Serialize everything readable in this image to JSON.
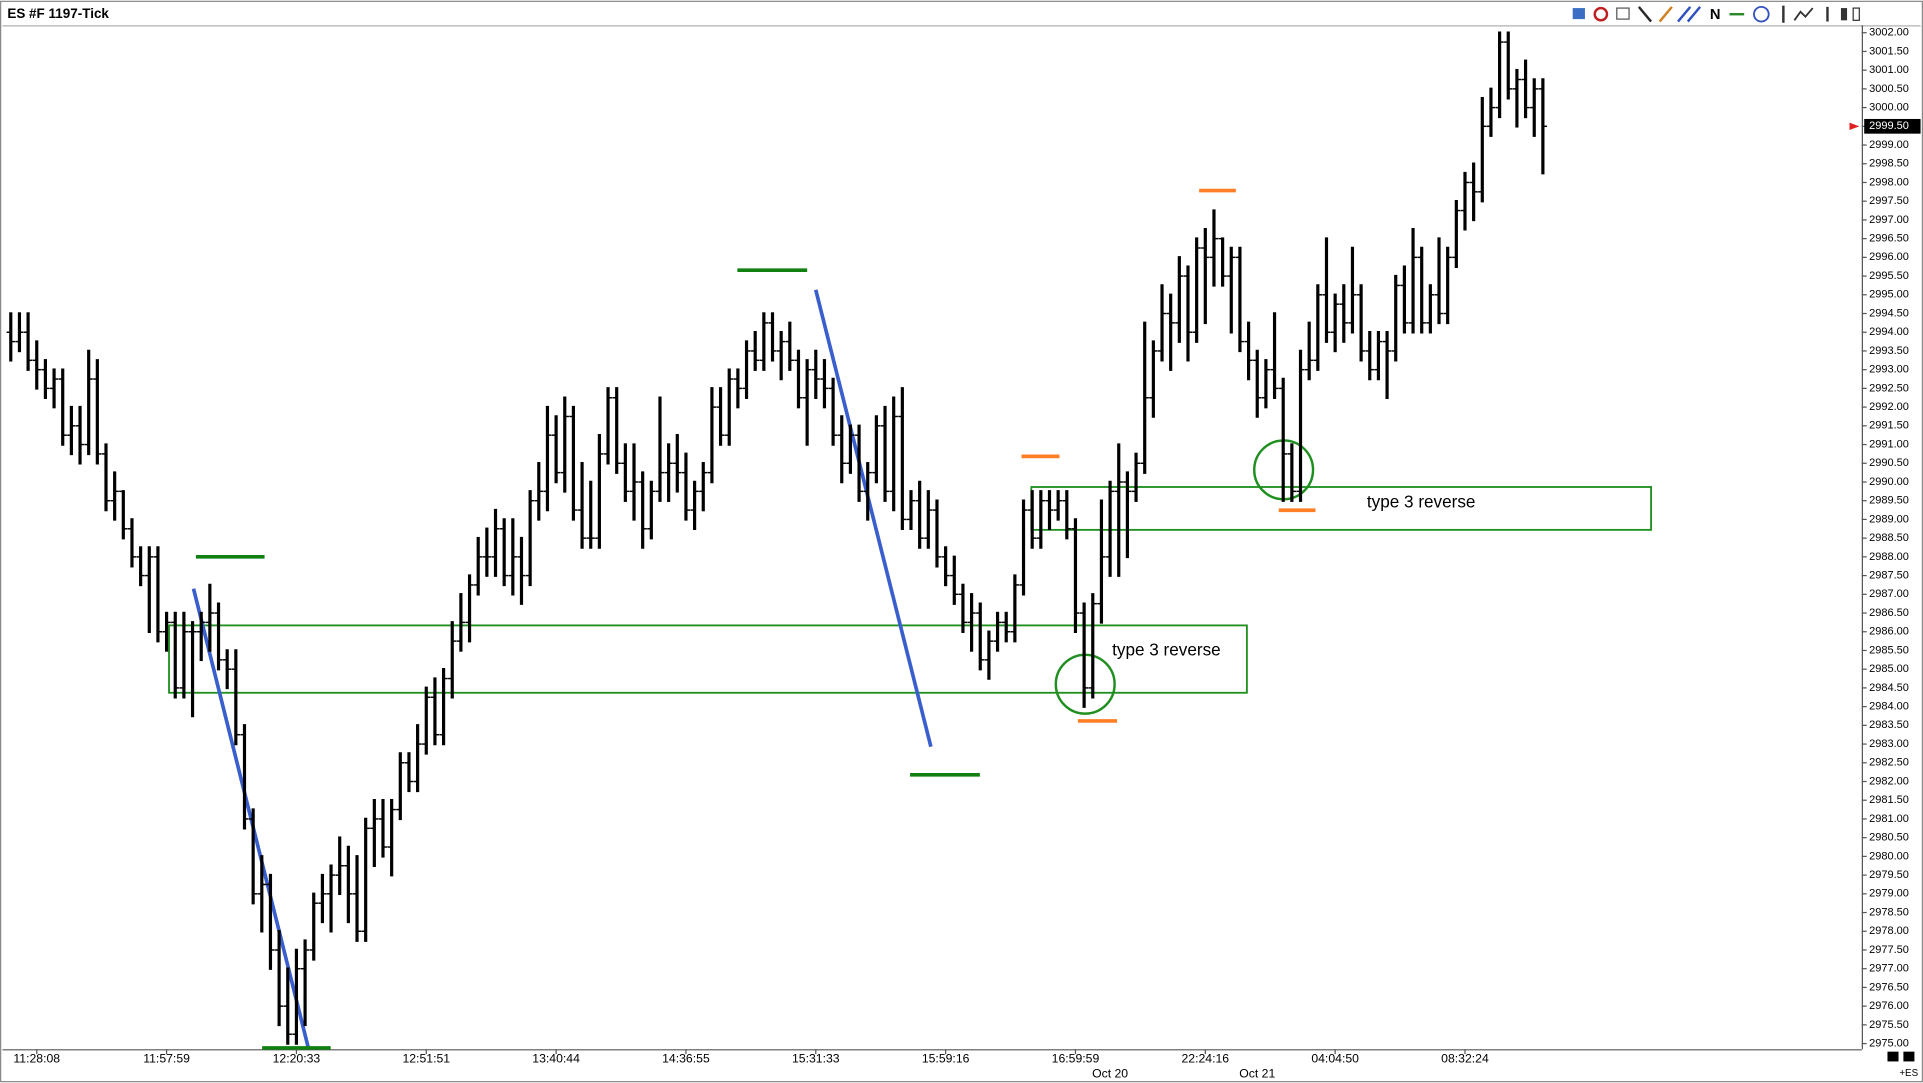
{
  "title": "ES #F 1197-Tick",
  "toolbar_letter": "N",
  "chart_data": {
    "type": "ohlc",
    "color": "#000000",
    "categories": [
      null,
      null,
      null,
      "11:28:08",
      null,
      null,
      null,
      null,
      null,
      null,
      null,
      null,
      null,
      null,
      null,
      null,
      null,
      null,
      "11:57:59",
      null,
      null,
      null,
      null,
      null,
      null,
      null,
      null,
      null,
      null,
      null,
      null,
      null,
      null,
      "12:20:33",
      null,
      null,
      null,
      null,
      null,
      null,
      null,
      null,
      null,
      null,
      null,
      null,
      null,
      null,
      "12:51:51",
      null,
      null,
      null,
      null,
      null,
      null,
      null,
      null,
      null,
      null,
      null,
      null,
      null,
      null,
      "13:40:44",
      null,
      null,
      null,
      null,
      null,
      null,
      null,
      null,
      null,
      null,
      null,
      null,
      null,
      null,
      "14:36:55",
      null,
      null,
      null,
      null,
      null,
      null,
      null,
      null,
      null,
      null,
      null,
      null,
      null,
      null,
      "15:31:33",
      null,
      null,
      null,
      null,
      null,
      null,
      null,
      null,
      null,
      null,
      null,
      null,
      null,
      null,
      "15:59:16",
      null,
      null,
      null,
      null,
      null,
      null,
      null,
      null,
      null,
      null,
      null,
      null,
      null,
      null,
      "16:59:59",
      null,
      null,
      null,
      null,
      null,
      null,
      null,
      null,
      null,
      null,
      null,
      null,
      null,
      null,
      "22:24:16",
      null,
      null,
      null,
      null,
      null,
      null,
      null,
      null,
      null,
      null,
      null,
      null,
      null,
      null,
      "04:04:50",
      null,
      null,
      null,
      null,
      null,
      null,
      null,
      null,
      null,
      null,
      null,
      null,
      null,
      null,
      "08:32:24",
      null,
      null,
      null,
      null,
      null,
      null,
      null,
      null,
      null
    ],
    "dates": [
      null,
      null,
      null,
      null,
      null,
      null,
      null,
      null,
      null,
      null,
      null,
      null,
      null,
      null,
      null,
      null,
      null,
      null,
      null,
      null,
      null,
      null,
      null,
      null,
      null,
      null,
      null,
      null,
      null,
      null,
      null,
      null,
      null,
      null,
      null,
      null,
      null,
      null,
      null,
      null,
      null,
      null,
      null,
      null,
      null,
      null,
      null,
      null,
      null,
      null,
      null,
      null,
      null,
      null,
      null,
      null,
      null,
      null,
      null,
      null,
      null,
      null,
      null,
      null,
      null,
      null,
      null,
      null,
      null,
      null,
      null,
      null,
      null,
      null,
      null,
      null,
      null,
      null,
      null,
      null,
      null,
      null,
      null,
      null,
      null,
      null,
      null,
      null,
      null,
      null,
      null,
      null,
      null,
      null,
      null,
      null,
      null,
      null,
      null,
      null,
      null,
      null,
      null,
      null,
      null,
      null,
      null,
      null,
      null,
      null,
      null,
      null,
      null,
      null,
      null,
      null,
      null,
      null,
      null,
      null,
      null,
      null,
      null,
      null,
      null,
      null,
      null,
      "Oct 20",
      null,
      null,
      null,
      null,
      null,
      null,
      null,
      null,
      null,
      null,
      null,
      null,
      null,
      null,
      null,
      null,
      "Oct 21",
      null,
      null,
      null,
      null,
      null,
      null,
      null,
      null,
      null,
      null,
      null,
      null,
      null,
      null,
      null,
      null,
      null,
      null,
      null,
      null,
      null,
      null,
      null,
      null,
      null,
      null,
      null,
      null,
      null,
      null,
      null,
      null,
      null
    ],
    "open": [
      2994.0,
      2993.75,
      2994.0,
      2993.25,
      2993.0,
      2992.5,
      2992.75,
      2991.25,
      2991.5,
      2991.0,
      2992.75,
      2990.75,
      2989.5,
      2989.75,
      2988.75,
      2988.0,
      2987.5,
      2988.0,
      2986.0,
      2986.25,
      2984.5,
      2986.0,
      2986.0,
      2986.25,
      2986.5,
      2985.25,
      2985.0,
      2983.25,
      2981.0,
      2979.0,
      2979.25,
      2977.5,
      2976.0,
      2975.25,
      2977.0,
      2977.5,
      2978.75,
      2979.0,
      2979.5,
      2979.75,
      2979.0,
      2978.0,
      2980.75,
      2981.0,
      2980.25,
      2981.25,
      2982.5,
      2982.0,
      2983.0,
      2984.25,
      2983.25,
      2984.75,
      2985.75,
      2986.25,
      2987.25,
      2988.0,
      2988.0,
      2988.75,
      2987.5,
      2988.0,
      2987.5,
      2989.5,
      2989.75,
      2991.25,
      2990.25,
      2991.75,
      2989.25,
      2988.5,
      2988.5,
      2990.75,
      2992.25,
      2990.5,
      2989.75,
      2990.0,
      2988.75,
      2989.75,
      2990.25,
      2990.5,
      2990.25,
      2989.25,
      2989.75,
      2990.25,
      2992.0,
      2991.25,
      2992.75,
      2992.5,
      2993.5,
      2993.25,
      2994.25,
      2993.5,
      2993.75,
      2993.25,
      2992.25,
      2993.0,
      2992.75,
      2992.5,
      2991.25,
      2990.5,
      2991.25,
      2989.75,
      2990.25,
      2991.5,
      2989.75,
      2991.75,
      2989.0,
      2989.5,
      2988.5,
      2989.25,
      2988.0,
      2987.5,
      2987.0,
      2986.25,
      2986.5,
      2985.25,
      2985.75,
      2986.25,
      2986.0,
      2987.25,
      2989.25,
      2988.5,
      2989.5,
      2989.25,
      2989.5,
      2988.75,
      2986.5,
      2984.5,
      2986.75,
      2988.0,
      2989.75,
      2990.0,
      2989.75,
      2990.5,
      2992.25,
      2993.5,
      2994.5,
      2994.25,
      2995.5,
      2994.0,
      2996.25,
      2996.0,
      2996.5,
      2995.5,
      2996.0,
      2993.75,
      2993.25,
      2992.25,
      2993.0,
      2992.5,
      2990.75,
      2989.75,
      2993.0,
      2993.25,
      2995.0,
      2994.0,
      2994.75,
      2994.25,
      2995.0,
      2993.5,
      2993.0,
      2993.75,
      2993.5,
      2995.25,
      2994.25,
      2996.0,
      2994.25,
      2995.0,
      2994.5,
      2996.0,
      2997.25,
      2998.0,
      2997.75,
      2999.5,
      3000.0,
      3001.75,
      3000.5,
      3000.75,
      3000.0,
      3000.5
    ],
    "high": [
      2994.5,
      2994.5,
      2994.5,
      2993.75,
      2993.25,
      2993.0,
      2993.0,
      2992.0,
      2992.0,
      2993.5,
      2993.25,
      2991.0,
      2990.25,
      2989.75,
      2989.0,
      2988.25,
      2988.25,
      2988.25,
      2986.5,
      2986.5,
      2986.5,
      2986.25,
      2986.5,
      2987.25,
      2986.75,
      2985.5,
      2985.5,
      2983.5,
      2981.25,
      2980.0,
      2979.5,
      2978.0,
      2977.0,
      2977.5,
      2977.75,
      2979.0,
      2979.5,
      2979.75,
      2980.5,
      2980.25,
      2980.0,
      2981.0,
      2981.5,
      2981.5,
      2981.5,
      2982.75,
      2982.75,
      2983.5,
      2984.5,
      2984.75,
      2985.0,
      2986.25,
      2987.0,
      2987.5,
      2988.5,
      2988.75,
      2989.25,
      2989.0,
      2989.0,
      2988.5,
      2989.75,
      2990.5,
      2992.0,
      2991.75,
      2992.25,
      2992.0,
      2990.5,
      2990.0,
      2991.25,
      2992.5,
      2992.5,
      2991.0,
      2991.0,
      2990.25,
      2990.0,
      2992.25,
      2991.0,
      2991.25,
      2990.75,
      2990.0,
      2990.5,
      2992.5,
      2992.5,
      2993.0,
      2993.0,
      2993.75,
      2994.0,
      2994.5,
      2994.5,
      2994.0,
      2994.25,
      2993.5,
      2993.25,
      2993.5,
      2993.25,
      2992.75,
      2991.75,
      2991.5,
      2991.5,
      2990.5,
      2991.75,
      2992.0,
      2992.25,
      2992.5,
      2989.75,
      2990.0,
      2989.75,
      2989.5,
      2988.25,
      2988.0,
      2987.25,
      2987.0,
      2986.75,
      2986.0,
      2986.5,
      2986.5,
      2987.5,
      2989.5,
      2989.75,
      2989.75,
      2989.75,
      2989.75,
      2989.75,
      2989.0,
      2986.75,
      2987.0,
      2989.5,
      2990.0,
      2991.0,
      2990.25,
      2990.75,
      2994.25,
      2993.75,
      2995.25,
      2995.0,
      2996.0,
      2995.75,
      2996.5,
      2996.75,
      2997.25,
      2996.5,
      2996.25,
      2996.25,
      2994.25,
      2993.5,
      2993.25,
      2994.5,
      2992.75,
      2991.0,
      2993.5,
      2994.25,
      2995.25,
      2996.5,
      2995.0,
      2995.25,
      2996.25,
      2995.25,
      2994.0,
      2994.0,
      2994.0,
      2995.5,
      2995.75,
      2996.75,
      2996.25,
      2995.25,
      2996.5,
      2996.25,
      2997.5,
      2998.25,
      2998.5,
      3000.25,
      3000.5,
      3002.0,
      3002.0,
      3001.0,
      3001.25,
      3000.75,
      3000.75
    ],
    "low": [
      2993.25,
      2993.5,
      2993.0,
      2992.5,
      2992.25,
      2992.0,
      2991.0,
      2990.75,
      2990.5,
      2990.75,
      2990.5,
      2989.25,
      2989.0,
      2988.5,
      2987.75,
      2987.25,
      2986.0,
      2985.75,
      2985.5,
      2984.25,
      2984.25,
      2983.75,
      2985.25,
      2985.5,
      2985.0,
      2984.5,
      2983.0,
      2980.75,
      2978.75,
      2978.0,
      2977.0,
      2975.5,
      2975.0,
      2975.0,
      2975.5,
      2977.25,
      2978.25,
      2978.0,
      2979.0,
      2978.25,
      2977.75,
      2977.75,
      2979.75,
      2980.0,
      2979.5,
      2981.0,
      2981.75,
      2981.75,
      2982.75,
      2983.0,
      2983.0,
      2984.25,
      2985.5,
      2985.75,
      2987.0,
      2987.5,
      2987.5,
      2987.25,
      2987.0,
      2986.75,
      2987.25,
      2989.0,
      2989.25,
      2990.0,
      2989.75,
      2989.0,
      2988.25,
      2988.25,
      2988.25,
      2990.5,
      2990.25,
      2989.5,
      2989.0,
      2988.25,
      2988.5,
      2989.5,
      2989.5,
      2989.75,
      2989.0,
      2988.75,
      2989.25,
      2990.0,
      2991.0,
      2991.0,
      2992.0,
      2992.25,
      2993.0,
      2993.0,
      2993.25,
      2992.75,
      2993.0,
      2992.0,
      2991.0,
      2992.25,
      2992.0,
      2991.0,
      2990.0,
      2990.25,
      2989.5,
      2989.0,
      2990.0,
      2989.5,
      2989.25,
      2988.75,
      2988.75,
      2988.25,
      2988.25,
      2987.75,
      2987.25,
      2986.75,
      2986.0,
      2985.5,
      2985.0,
      2984.75,
      2985.5,
      2985.75,
      2985.75,
      2987.0,
      2988.25,
      2988.25,
      2988.75,
      2989.0,
      2988.5,
      2986.0,
      2984.0,
      2984.25,
      2986.25,
      2987.5,
      2987.5,
      2988.0,
      2989.5,
      2990.25,
      2991.75,
      2993.25,
      2993.0,
      2993.75,
      2993.25,
      2993.75,
      2994.25,
      2995.25,
      2995.25,
      2994.0,
      2993.5,
      2992.75,
      2991.75,
      2992.0,
      2992.25,
      2989.5,
      2989.5,
      2989.5,
      2992.75,
      2993.0,
      2993.75,
      2993.5,
      2993.75,
      2994.0,
      2993.25,
      2992.75,
      2992.75,
      2992.25,
      2993.25,
      2994.0,
      2994.0,
      2994.0,
      2994.0,
      2994.25,
      2994.25,
      2995.75,
      2996.75,
      2997.0,
      2997.5,
      2999.25,
      2999.75,
      3000.25,
      2999.5,
      2999.75,
      2999.25,
      2998.25
    ],
    "close": [
      2993.75,
      2994.0,
      2993.25,
      2993.0,
      2992.5,
      2992.75,
      2991.25,
      2991.5,
      2991.0,
      2992.75,
      2990.75,
      2989.5,
      2989.75,
      2988.75,
      2988.0,
      2987.5,
      2988.0,
      2986.0,
      2986.25,
      2984.5,
      2986.0,
      2986.0,
      2986.25,
      2986.5,
      2985.25,
      2985.0,
      2983.25,
      2981.0,
      2979.0,
      2979.25,
      2977.5,
      2976.0,
      2975.25,
      2977.0,
      2977.5,
      2978.75,
      2979.0,
      2979.5,
      2979.75,
      2979.0,
      2978.0,
      2980.75,
      2981.0,
      2980.25,
      2981.25,
      2982.5,
      2982.0,
      2983.0,
      2984.25,
      2983.25,
      2984.75,
      2985.75,
      2986.25,
      2987.25,
      2988.0,
      2988.0,
      2988.75,
      2987.5,
      2988.0,
      2987.5,
      2989.5,
      2989.75,
      2991.25,
      2990.25,
      2991.75,
      2989.25,
      2988.5,
      2988.5,
      2990.75,
      2992.25,
      2990.5,
      2989.75,
      2990.0,
      2988.75,
      2989.75,
      2990.25,
      2990.5,
      2990.25,
      2989.25,
      2989.75,
      2990.25,
      2992.0,
      2991.25,
      2992.75,
      2992.5,
      2993.5,
      2993.25,
      2994.25,
      2993.5,
      2993.75,
      2993.25,
      2992.25,
      2993.0,
      2992.75,
      2992.5,
      2991.25,
      2990.5,
      2991.25,
      2989.75,
      2990.25,
      2991.5,
      2989.75,
      2991.75,
      2989.0,
      2989.5,
      2988.5,
      2989.25,
      2988.0,
      2987.5,
      2987.0,
      2986.25,
      2986.5,
      2985.25,
      2985.75,
      2986.25,
      2986.0,
      2987.25,
      2989.25,
      2988.5,
      2989.5,
      2989.25,
      2989.5,
      2988.75,
      2986.5,
      2984.5,
      2986.75,
      2988.0,
      2989.75,
      2990.0,
      2989.75,
      2990.5,
      2992.25,
      2993.5,
      2994.5,
      2994.25,
      2995.5,
      2994.0,
      2996.25,
      2996.0,
      2996.5,
      2995.5,
      2996.0,
      2993.75,
      2993.25,
      2992.25,
      2993.0,
      2992.5,
      2990.75,
      2989.75,
      2993.0,
      2993.25,
      2995.0,
      2994.0,
      2994.75,
      2994.25,
      2995.0,
      2993.5,
      2993.0,
      2993.75,
      2993.5,
      2995.25,
      2994.25,
      2996.0,
      2994.25,
      2995.0,
      2994.5,
      2996.0,
      2997.25,
      2998.0,
      2997.75,
      2999.5,
      3000.0,
      3001.75,
      3000.5,
      3000.75,
      3000.0,
      3000.5,
      2999.5
    ],
    "ylim": [
      2974.85,
      3002.2
    ],
    "yticks": [
      {
        "value": 2975,
        "label": "2975.00"
      },
      {
        "value": 2975.5,
        "label": "2975.50"
      },
      {
        "value": 2976,
        "label": "2976.00"
      },
      {
        "value": 2976.5,
        "label": "2976.50"
      },
      {
        "value": 2977,
        "label": "2977.00"
      },
      {
        "value": 2977.5,
        "label": "2977.50"
      },
      {
        "value": 2978,
        "label": "2978.00"
      },
      {
        "value": 2978.5,
        "label": "2978.50"
      },
      {
        "value": 2979,
        "label": "2979.00"
      },
      {
        "value": 2979.5,
        "label": "2979.50"
      },
      {
        "value": 2980,
        "label": "2980.00"
      },
      {
        "value": 2980.5,
        "label": "2980.50"
      },
      {
        "value": 2981,
        "label": "2981.00"
      },
      {
        "value": 2981.5,
        "label": "2981.50"
      },
      {
        "value": 2982,
        "label": "2982.00"
      },
      {
        "value": 2982.5,
        "label": "2982.50"
      },
      {
        "value": 2983,
        "label": "2983.00"
      },
      {
        "value": 2983.5,
        "label": "2983.50"
      },
      {
        "value": 2984,
        "label": "2984.00"
      },
      {
        "value": 2984.5,
        "label": "2984.50"
      },
      {
        "value": 2985,
        "label": "2985.00"
      },
      {
        "value": 2985.5,
        "label": "2985.50"
      },
      {
        "value": 2986,
        "label": "2986.00"
      },
      {
        "value": 2986.5,
        "label": "2986.50"
      },
      {
        "value": 2987,
        "label": "2987.00"
      },
      {
        "value": 2987.5,
        "label": "2987.50"
      },
      {
        "value": 2988,
        "label": "2988.00"
      },
      {
        "value": 2988.5,
        "label": "2988.50"
      },
      {
        "value": 2989,
        "label": "2989.00"
      },
      {
        "value": 2989.5,
        "label": "2989.50"
      },
      {
        "value": 2990,
        "label": "2990.00"
      },
      {
        "value": 2990.5,
        "label": "2990.50"
      },
      {
        "value": 2991,
        "label": "2991.00"
      },
      {
        "value": 2991.5,
        "label": "2991.50"
      },
      {
        "value": 2992,
        "label": "2992.00"
      },
      {
        "value": 2992.5,
        "label": "2992.50"
      },
      {
        "value": 2993,
        "label": "2993.00"
      },
      {
        "value": 2993.5,
        "label": "2993.50"
      },
      {
        "value": 2994,
        "label": "2994.00"
      },
      {
        "value": 2994.5,
        "label": "2994.50"
      },
      {
        "value": 2995,
        "label": "2995.00"
      },
      {
        "value": 2995.5,
        "label": "2995.50"
      },
      {
        "value": 2996,
        "label": "2996.00"
      },
      {
        "value": 2996.5,
        "label": "2996.50"
      },
      {
        "value": 2997,
        "label": "2997.00"
      },
      {
        "value": 2997.5,
        "label": "2997.50"
      },
      {
        "value": 2998,
        "label": "2998.00"
      },
      {
        "value": 2998.5,
        "label": "2998.50"
      },
      {
        "value": 2999,
        "label": "2999.00"
      },
      {
        "value": 2999.5,
        "label": "2999.50"
      },
      {
        "value": 3000,
        "label": "3000.00"
      },
      {
        "value": 3000.5,
        "label": "3000.50"
      },
      {
        "value": 3001,
        "label": "3001.00"
      },
      {
        "value": 3001.5,
        "label": "3001.50"
      },
      {
        "value": 3002,
        "label": "3002.00"
      }
    ],
    "last_price": {
      "value": 2999.5,
      "label": "2999.50"
    },
    "annotations": [
      "type 3 reverse",
      "type 3 reverse"
    ],
    "symbol_tag": "+ES"
  }
}
